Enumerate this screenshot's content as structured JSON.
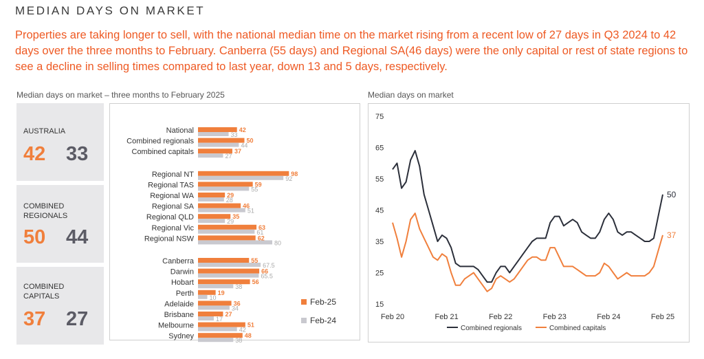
{
  "page": {
    "title": "MEDIAN DAYS ON MARKET",
    "intro": "Properties are taking longer to sell, with the national median time on the market rising from a recent low of 27 days in Q3 2024 to 42 days over the three months to February. Canberra (55 days) and Regional SA(46 days) were the only capital or rest of state regions to see a decline in selling times compared to last year, down 13 and 5 days, respectively.",
    "left_subtitle": "Median days on market – three months to February 2025",
    "right_subtitle": "Median days on market"
  },
  "stats": [
    {
      "label": "AUSTRALIA",
      "current": "42",
      "previous": "33"
    },
    {
      "label": "COMBINED REGIONALS",
      "current": "50",
      "previous": "44"
    },
    {
      "label": "COMBINED CAPITALS",
      "current": "37",
      "previous": "27"
    }
  ],
  "colors": {
    "feb25": "#f07f3c",
    "feb24": "#c9c9cf",
    "regionals": "#2b2f3a",
    "capitals": "#f07f3c"
  },
  "chart_data": [
    {
      "type": "bar",
      "orientation": "horizontal",
      "title": "Median days on market – three months to February 2025",
      "groups": [
        {
          "categories": [
            "National",
            "Combined regionals",
            "Combined capitals"
          ]
        },
        {
          "categories": [
            "Regional NT",
            "Regional TAS",
            "Regional WA",
            "Regional SA",
            "Regional QLD",
            "Regional Vic",
            "Regional NSW"
          ]
        },
        {
          "categories": [
            "Canberra",
            "Darwin",
            "Hobart",
            "Perth",
            "Adelaide",
            "Brisbane",
            "Melbourne",
            "Sydney"
          ]
        }
      ],
      "categories": [
        "National",
        "Combined regionals",
        "Combined capitals",
        "Regional NT",
        "Regional TAS",
        "Regional WA",
        "Regional SA",
        "Regional QLD",
        "Regional Vic",
        "Regional NSW",
        "Canberra",
        "Darwin",
        "Hobart",
        "Perth",
        "Adelaide",
        "Brisbane",
        "Melbourne",
        "Sydney"
      ],
      "series": [
        {
          "name": "Feb-25",
          "values": [
            42,
            50,
            37,
            98,
            59,
            29,
            46,
            35,
            63,
            62,
            55,
            66,
            56,
            19,
            36,
            27,
            51,
            48
          ],
          "labels": [
            "42",
            "50",
            "37",
            "98",
            "59",
            "29",
            "46",
            "35",
            "63",
            "62",
            "55",
            "66",
            "56",
            "19",
            "36",
            "27",
            "51",
            "48"
          ]
        },
        {
          "name": "Feb-24",
          "values": [
            33,
            44,
            27,
            92,
            55,
            28,
            51,
            29,
            61,
            80,
            67.5,
            65.5,
            38,
            10,
            34,
            17,
            42,
            38
          ],
          "labels": [
            "33",
            "44",
            "27",
            "92",
            "55",
            "28",
            "51",
            "29",
            "61",
            "80",
            "67.5",
            "65.5",
            "38",
            "10",
            "34",
            "17",
            "42",
            "38"
          ]
        }
      ],
      "xlim": [
        0,
        100
      ],
      "legend": "bottom-right"
    },
    {
      "type": "line",
      "title": "Median days on market",
      "x_ticks": [
        "Feb 20",
        "Feb 21",
        "Feb 22",
        "Feb 23",
        "Feb 24",
        "Feb 25"
      ],
      "y_ticks": [
        "75",
        "65",
        "55",
        "45",
        "35",
        "25",
        "15"
      ],
      "ylim": [
        15,
        75
      ],
      "legend": "bottom",
      "series": [
        {
          "name": "Combined regionals",
          "end_label": "50",
          "values": [
            58,
            60,
            52,
            54,
            61,
            64,
            59,
            50,
            45,
            40,
            35,
            37,
            36,
            33,
            28,
            27,
            27,
            27,
            27,
            26,
            24,
            22,
            22,
            25,
            27,
            27,
            25,
            27,
            29,
            31,
            33,
            35,
            36,
            36,
            36,
            41,
            43,
            43,
            40,
            41,
            42,
            41,
            38,
            37,
            36,
            36,
            38,
            42,
            44,
            42,
            38,
            37,
            38,
            38,
            37,
            36,
            35,
            35,
            36,
            43,
            50
          ]
        },
        {
          "name": "Combined capitals",
          "end_label": "37",
          "values": [
            41,
            36,
            30,
            35,
            42,
            44,
            39,
            36,
            33,
            30,
            29,
            31,
            30,
            25,
            21,
            21,
            23,
            24,
            25,
            23,
            21,
            19,
            20,
            23,
            24,
            23,
            22,
            23,
            25,
            27,
            29,
            30,
            30,
            29,
            29,
            33,
            33,
            30,
            27,
            27,
            27,
            26,
            25,
            24,
            24,
            24,
            25,
            28,
            27,
            25,
            23,
            24,
            25,
            24,
            24,
            24,
            24,
            25,
            27,
            32,
            37
          ]
        }
      ]
    }
  ]
}
